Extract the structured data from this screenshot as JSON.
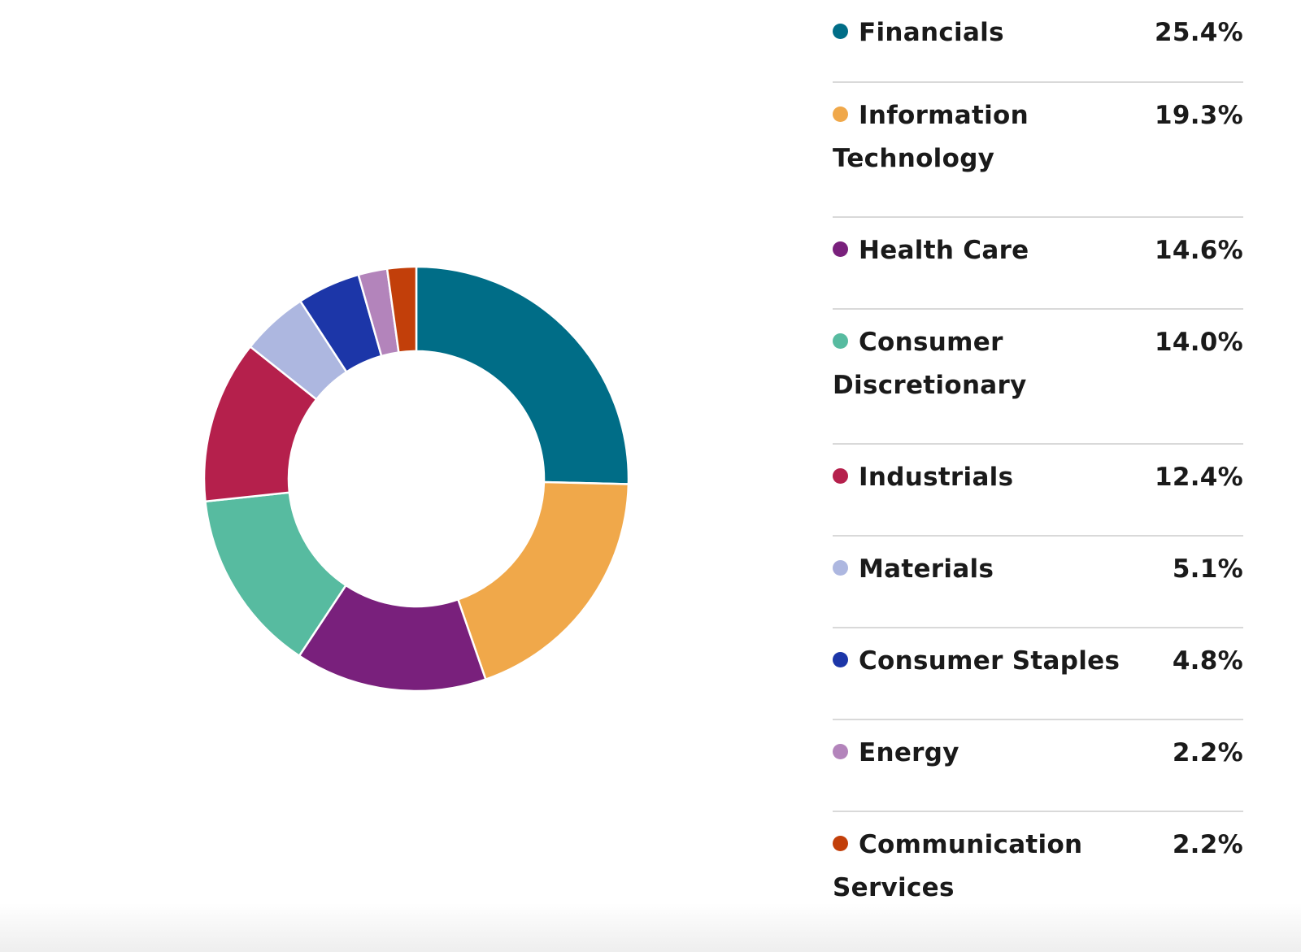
{
  "chart_data": {
    "type": "pie",
    "title": "",
    "donut": true,
    "legend_position": "right",
    "categories": [
      "Financials",
      "Information Technology",
      "Health Care",
      "Consumer Discretionary",
      "Industrials",
      "Materials",
      "Consumer Staples",
      "Energy",
      "Communication Services"
    ],
    "values": [
      25.4,
      19.3,
      14.6,
      14.0,
      12.4,
      5.1,
      4.8,
      2.2,
      2.2
    ],
    "value_labels": [
      "25.4%",
      "19.3%",
      "14.6%",
      "14.0%",
      "12.4%",
      "5.1%",
      "4.8%",
      "2.2%",
      "2.2%"
    ],
    "colors": [
      "#006d87",
      "#f0a84a",
      "#79207c",
      "#57bba0",
      "#b5204c",
      "#adb7e0",
      "#1c36a8",
      "#b384bb",
      "#c23f0a"
    ]
  }
}
